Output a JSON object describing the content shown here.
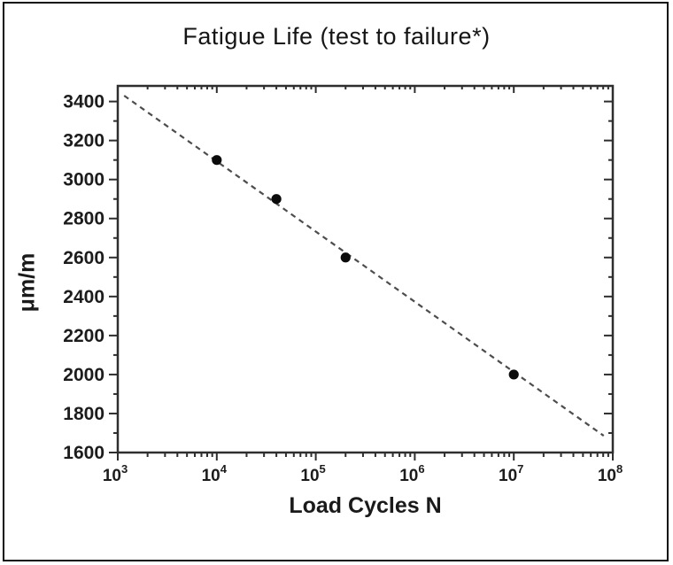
{
  "figure": {
    "background": "#ffffff",
    "border_color": "#0d0d0d"
  },
  "chart_data": {
    "type": "scatter",
    "title": "Fatigue Life (test to failure*)",
    "xlabel": "Load Cycles N",
    "ylabel": "μm/m",
    "x_scale": "log",
    "y_scale": "linear",
    "xlim": [
      1000,
      100000000
    ],
    "ylim": [
      1600,
      3480
    ],
    "x_major_ticks": [
      1000,
      10000,
      100000,
      1000000,
      10000000,
      100000000
    ],
    "x_tick_exponents": [
      "3",
      "4",
      "5",
      "6",
      "7",
      "8"
    ],
    "x_tick_base": "10",
    "x_minor_multiples": [
      2,
      3,
      4,
      5,
      6,
      7,
      8,
      9
    ],
    "y_major_ticks": [
      1600,
      1800,
      2000,
      2200,
      2400,
      2600,
      2800,
      3000,
      3200,
      3400
    ],
    "y_minor_step": 100,
    "grid": "off",
    "legend": "none",
    "points": [
      {
        "x": 10000,
        "y": 3100
      },
      {
        "x": 40000,
        "y": 2900
      },
      {
        "x": 200000,
        "y": 2600
      },
      {
        "x": 10000000,
        "y": 2000
      }
    ],
    "trendline": {
      "style": "dashed",
      "x1": 1160,
      "y1": 3430,
      "x2": 81000000,
      "y2": 1686
    },
    "marker_color": "#0b0b0b",
    "trendline_color": "#4d4d4d",
    "axis_color": "#2e2e2e",
    "tick_label_color": "#1c1c1c"
  }
}
